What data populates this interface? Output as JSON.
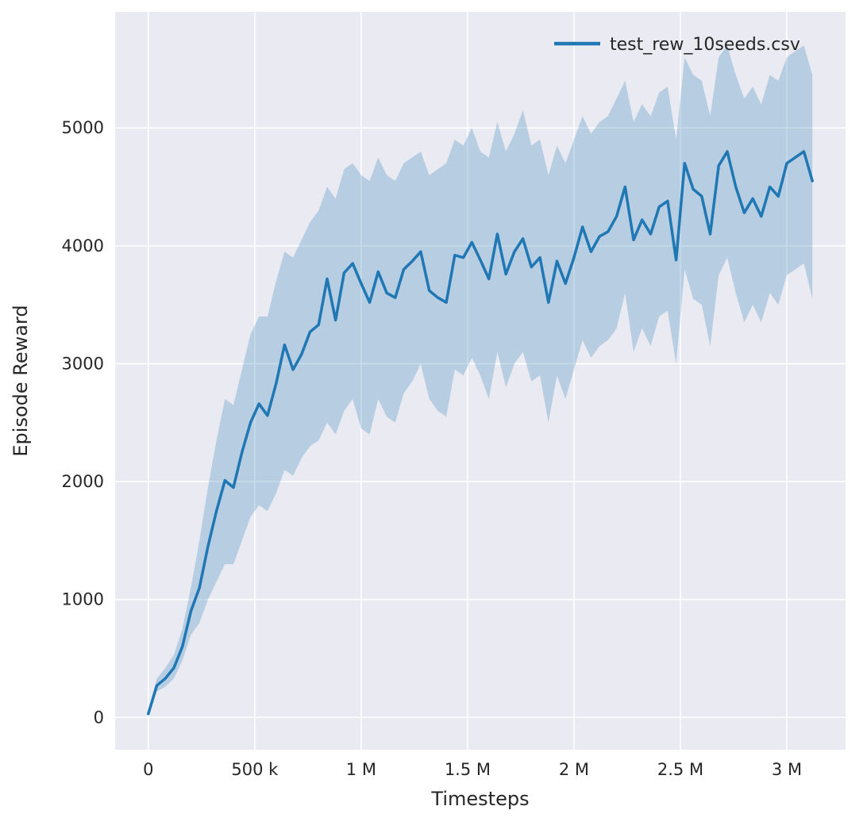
{
  "figure": {
    "background": "#ffffff",
    "axes_background": "#eaeaf2",
    "grid_color": "#ffffff",
    "text_color": "#262626"
  },
  "chart_data": {
    "type": "line",
    "title": "",
    "xlabel": "Timesteps",
    "ylabel": "Episode Reward",
    "grid": true,
    "legend": {
      "position": "upper right",
      "entries": [
        "test_rew_10seeds.csv"
      ]
    },
    "xlim": [
      -156000,
      3276000
    ],
    "ylim": [
      -274,
      5984
    ],
    "xticks": {
      "values": [
        0,
        500000,
        1000000,
        1500000,
        2000000,
        2500000,
        3000000
      ],
      "labels": [
        "0",
        "500 k",
        "1 M",
        "1.5 M",
        "2 M",
        "2.5 M",
        "3 M"
      ]
    },
    "yticks": {
      "values": [
        0,
        1000,
        2000,
        3000,
        4000,
        5000
      ],
      "labels": [
        "0",
        "1000",
        "2000",
        "3000",
        "4000",
        "5000"
      ]
    },
    "series": [
      {
        "name": "test_rew_10seeds.csv",
        "color": "#1f77b4",
        "band_color": "#1f77b4",
        "band_opacity": 0.25,
        "line_width": 3.5,
        "x": [
          0,
          40000,
          80000,
          120000,
          160000,
          200000,
          240000,
          280000,
          320000,
          360000,
          400000,
          440000,
          480000,
          520000,
          560000,
          600000,
          640000,
          680000,
          720000,
          760000,
          800000,
          840000,
          880000,
          920000,
          960000,
          1000000,
          1040000,
          1080000,
          1120000,
          1160000,
          1200000,
          1240000,
          1280000,
          1320000,
          1360000,
          1400000,
          1440000,
          1480000,
          1520000,
          1560000,
          1600000,
          1640000,
          1680000,
          1720000,
          1760000,
          1800000,
          1840000,
          1880000,
          1920000,
          1960000,
          2000000,
          2040000,
          2080000,
          2120000,
          2160000,
          2200000,
          2240000,
          2280000,
          2320000,
          2360000,
          2400000,
          2440000,
          2480000,
          2520000,
          2560000,
          2600000,
          2640000,
          2680000,
          2720000,
          2760000,
          2800000,
          2840000,
          2880000,
          2920000,
          2960000,
          3000000,
          3040000,
          3080000,
          3120000
        ],
        "mean": [
          30,
          270,
          330,
          420,
          600,
          900,
          1100,
          1450,
          1750,
          2010,
          1950,
          2250,
          2500,
          2660,
          2560,
          2830,
          3160,
          2950,
          3080,
          3270,
          3330,
          3720,
          3370,
          3770,
          3850,
          3680,
          3520,
          3780,
          3600,
          3560,
          3800,
          3870,
          3950,
          3620,
          3560,
          3520,
          3920,
          3900,
          4030,
          3880,
          3720,
          4100,
          3760,
          3950,
          4060,
          3820,
          3900,
          3520,
          3870,
          3680,
          3900,
          4160,
          3950,
          4080,
          4120,
          4250,
          4500,
          4050,
          4220,
          4100,
          4330,
          4380,
          3880,
          4700,
          4480,
          4420,
          4100,
          4680,
          4800,
          4500,
          4280,
          4400,
          4250,
          4500,
          4420,
          4700,
          4750,
          4800,
          4550
        ],
        "band_low": [
          10,
          220,
          260,
          330,
          480,
          700,
          800,
          1000,
          1150,
          1300,
          1300,
          1500,
          1700,
          1800,
          1750,
          1900,
          2100,
          2050,
          2200,
          2300,
          2350,
          2500,
          2400,
          2600,
          2700,
          2450,
          2400,
          2700,
          2550,
          2500,
          2750,
          2850,
          3000,
          2700,
          2600,
          2550,
          2950,
          2900,
          3050,
          2900,
          2700,
          3100,
          2800,
          3000,
          3100,
          2850,
          2900,
          2500,
          2900,
          2700,
          2950,
          3200,
          3050,
          3150,
          3200,
          3300,
          3600,
          3100,
          3300,
          3150,
          3400,
          3450,
          3000,
          3800,
          3550,
          3500,
          3150,
          3750,
          3900,
          3600,
          3350,
          3500,
          3350,
          3600,
          3500,
          3750,
          3800,
          3850,
          3550
        ],
        "band_high": [
          60,
          330,
          420,
          530,
          750,
          1100,
          1500,
          1950,
          2350,
          2700,
          2650,
          2950,
          3250,
          3400,
          3400,
          3700,
          3950,
          3900,
          4050,
          4200,
          4300,
          4500,
          4400,
          4650,
          4700,
          4600,
          4550,
          4750,
          4600,
          4550,
          4700,
          4750,
          4800,
          4600,
          4650,
          4700,
          4900,
          4850,
          5000,
          4800,
          4750,
          5050,
          4800,
          4950,
          5150,
          4850,
          4900,
          4600,
          4850,
          4700,
          4900,
          5100,
          4950,
          5050,
          5100,
          5250,
          5400,
          5050,
          5200,
          5100,
          5300,
          5350,
          4900,
          5600,
          5450,
          5400,
          5100,
          5600,
          5700,
          5450,
          5250,
          5350,
          5200,
          5450,
          5400,
          5600,
          5650,
          5700,
          5450
        ]
      }
    ]
  }
}
